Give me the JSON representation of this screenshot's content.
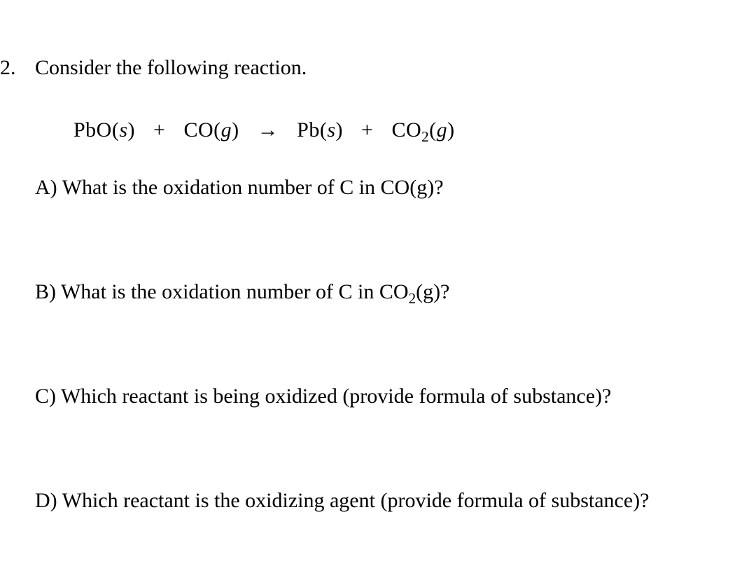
{
  "question": {
    "number": "2.",
    "intro": "Consider the following reaction.",
    "equation": {
      "reactant1": {
        "formula": "PbO",
        "state": "s"
      },
      "reactant2": {
        "formula": "CO",
        "state": "g"
      },
      "product1": {
        "formula": "Pb",
        "state": "s"
      },
      "product2": {
        "formula_pre": "CO",
        "sub": "2",
        "state": "g"
      }
    },
    "parts": {
      "a": {
        "label": "A) ",
        "text": "What is the oxidation number of C in CO(g)?"
      },
      "b": {
        "label": "B) ",
        "text_pre": "What is the oxidation number of C in CO",
        "sub": "2",
        "text_post": "(g)?"
      },
      "c": {
        "label": "C) ",
        "text": "Which reactant is being oxidized (provide formula of substance)?"
      },
      "d": {
        "label": "D) ",
        "text": "Which reactant is the oxidizing agent (provide formula of substance)?"
      }
    }
  },
  "style": {
    "font_family": "Times New Roman",
    "font_size_pt": 22,
    "text_color": "#000000",
    "background_color": "#ffffff"
  }
}
